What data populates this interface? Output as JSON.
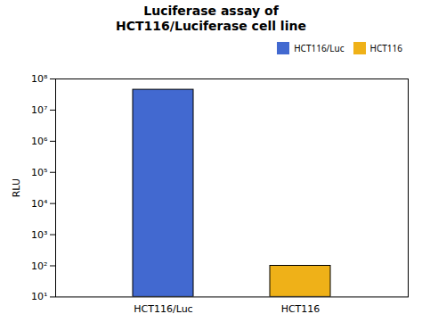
{
  "chart_data": {
    "type": "bar",
    "title": "Luciferase assay of\nHCT116/Luciferase cell line",
    "ylabel": "RLU",
    "categories": [
      "HCT116/Luc",
      "HCT116"
    ],
    "values": [
      45000000,
      100
    ],
    "log": "y",
    "ylim": [
      10,
      100000000
    ],
    "yticks": [
      {
        "value": 10,
        "label": "10¹"
      },
      {
        "value": 100,
        "label": "10²"
      },
      {
        "value": 1000,
        "label": "10³"
      },
      {
        "value": 10000,
        "label": "10⁴"
      },
      {
        "value": 100000,
        "label": "10⁵"
      },
      {
        "value": 1000000,
        "label": "10⁶"
      },
      {
        "value": 10000000,
        "label": "10⁷"
      },
      {
        "value": 100000000,
        "label": "10⁸"
      }
    ],
    "grid": false,
    "legend": "upper right"
  }
}
